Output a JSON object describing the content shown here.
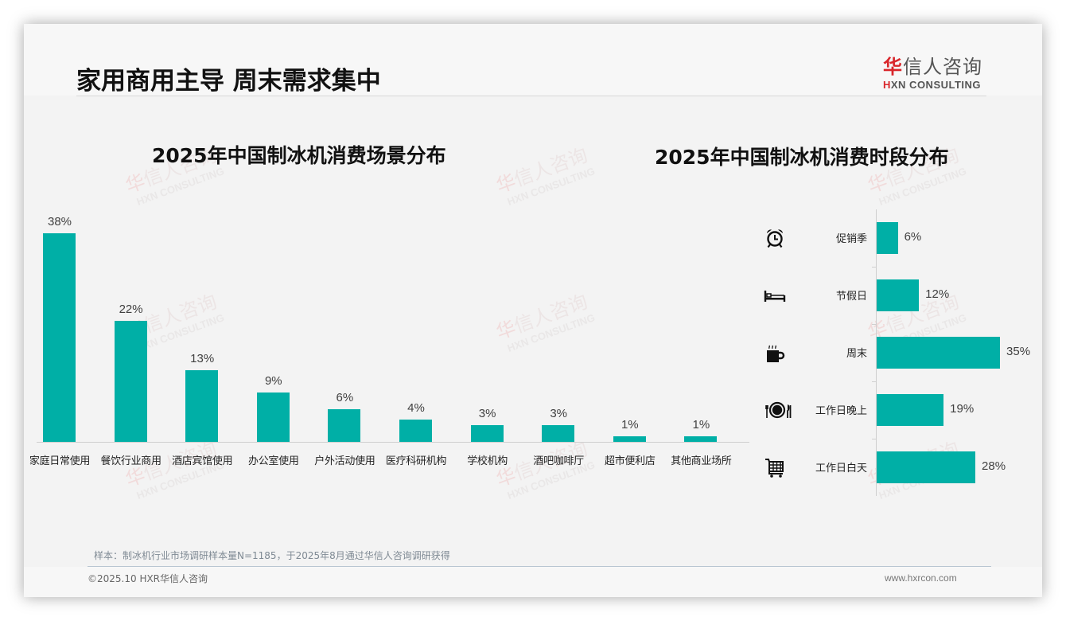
{
  "page": {
    "title": "家用商用主导 周末需求集中",
    "logo": {
      "cn_red": "华",
      "cn_rest": "信人咨询",
      "en_red": "H",
      "en_rest": "XN CONSULTING"
    },
    "watermark": {
      "cn_red": "华",
      "cn_rest": "信人咨询",
      "en": "HXN CONSULTING"
    },
    "footnote": "样本：制冰机行业市场调研样本量N=1185，于2025年8月通过华信人咨询调研获得",
    "copyright": "©2025.10 HXR华信人咨询",
    "website": "www.hxrcon.com"
  },
  "colors": {
    "bar": "#00afa6",
    "brand_red": "#d9262b"
  },
  "chart_data": [
    {
      "type": "bar",
      "title": "2025年中国制冰机消费场景分布",
      "orientation": "vertical",
      "categories": [
        "家庭日常使用",
        "餐饮行业商用",
        "酒店宾馆使用",
        "办公室使用",
        "户外活动使用",
        "医疗科研机构",
        "学校机构",
        "酒吧咖啡厅",
        "超市便利店",
        "其他商业场所"
      ],
      "values": [
        38,
        22,
        13,
        9,
        6,
        4,
        3,
        3,
        1,
        1
      ],
      "value_labels": [
        "38%",
        "22%",
        "13%",
        "9%",
        "6%",
        "4%",
        "3%",
        "3%",
        "1%",
        "1%"
      ],
      "unit": "%",
      "xlabel": "",
      "ylabel": "",
      "grid": false,
      "legend": "none"
    },
    {
      "type": "bar",
      "title": "2025年中国制冰机消费时段分布",
      "orientation": "horizontal",
      "categories": [
        "促销季",
        "节假日",
        "周末",
        "工作日晚上",
        "工作日白天"
      ],
      "icons": [
        "alarm-clock-icon",
        "bed-icon",
        "coffee-mug-icon",
        "dining-plate-icon",
        "shopping-cart-icon"
      ],
      "values": [
        6,
        12,
        35,
        19,
        28
      ],
      "value_labels": [
        "6%",
        "12%",
        "35%",
        "19%",
        "28%"
      ],
      "unit": "%",
      "xlabel": "",
      "ylabel": "",
      "grid": false,
      "legend": "none"
    }
  ]
}
